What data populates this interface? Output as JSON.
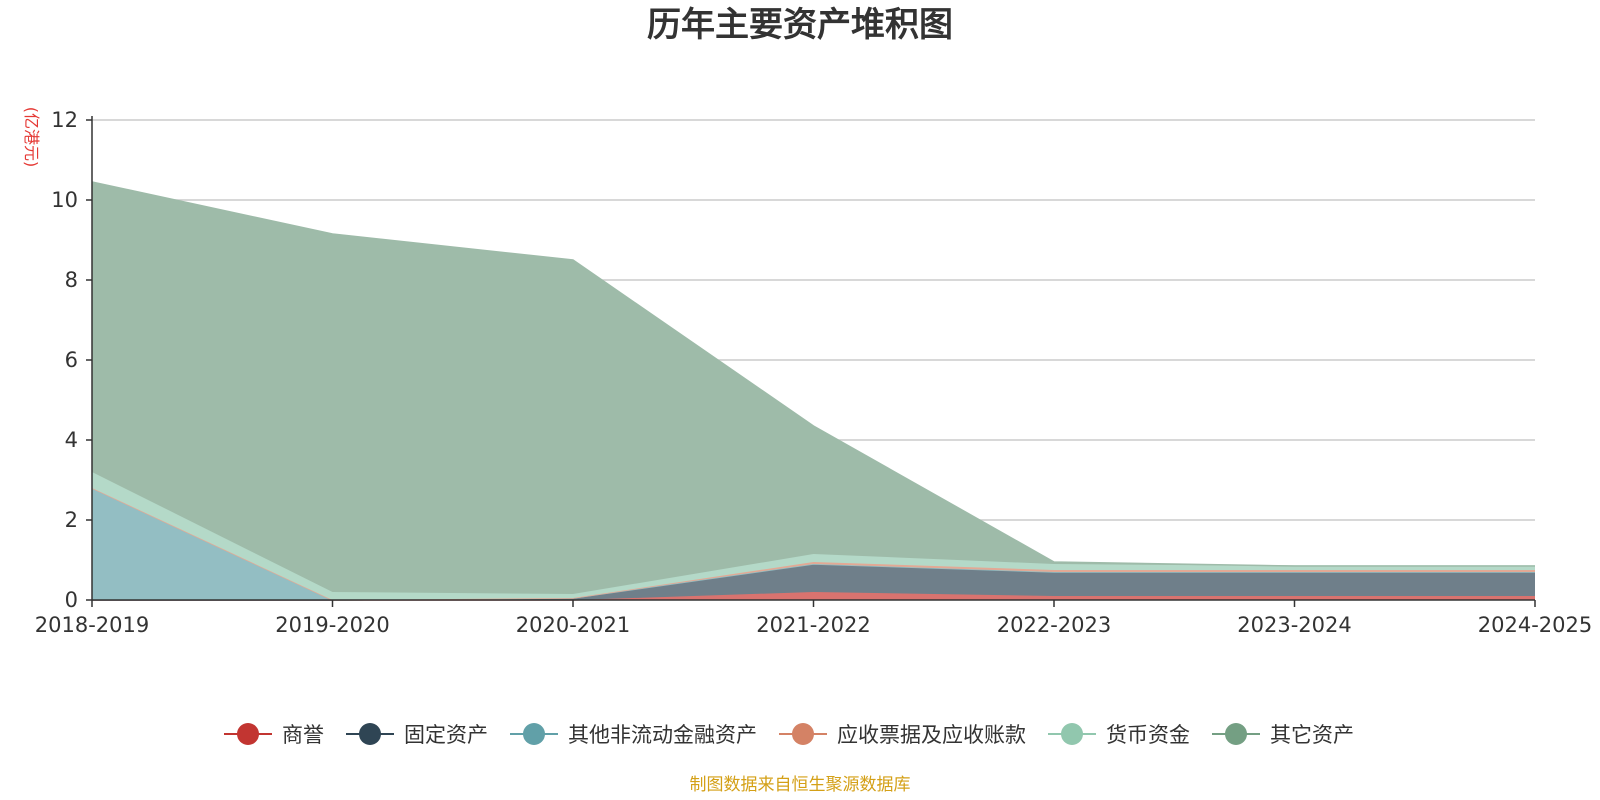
{
  "chart_data": {
    "type": "area",
    "title": "历年主要资产堆积图",
    "unit_label": "(亿港元)",
    "source": "制图数据来自恒生聚源数据库",
    "categories": [
      "2018-2019",
      "2019-2020",
      "2020-2021",
      "2021-2022",
      "2022-2023",
      "2023-2024",
      "2024-2025"
    ],
    "ylim": [
      0,
      12
    ],
    "yticks": [
      0,
      2,
      4,
      6,
      8,
      10,
      12
    ],
    "grid": true,
    "legend_position": "bottom",
    "series": [
      {
        "name": "商誉",
        "color": "#c23531",
        "fill": "#d9736f",
        "values": [
          0,
          0,
          0,
          0.2,
          0.1,
          0.1,
          0.1
        ]
      },
      {
        "name": "固定资产",
        "color": "#2f4554",
        "fill": "#6f7f8a",
        "values": [
          0,
          0,
          0.05,
          0.7,
          0.6,
          0.6,
          0.6
        ]
      },
      {
        "name": "其他非流动金融资产",
        "color": "#61a0a8",
        "fill": "#93bec3",
        "values": [
          2.8,
          0,
          0,
          0,
          0,
          0,
          0
        ]
      },
      {
        "name": "应收票据及应收账款",
        "color": "#d48265",
        "fill": "#e2a995",
        "values": [
          0,
          0,
          0,
          0.05,
          0.05,
          0.05,
          0.05
        ]
      },
      {
        "name": "货币资金",
        "color": "#91c7ae",
        "fill": "#b4d9c8",
        "values": [
          0.4,
          0.2,
          0.1,
          0.2,
          0.15,
          0.1,
          0.1
        ]
      },
      {
        "name": "其它资产",
        "color": "#749f83",
        "fill": "#9ebba9",
        "values": [
          7.25,
          8.95,
          8.35,
          3.2,
          0.05,
          0,
          0
        ]
      }
    ]
  }
}
